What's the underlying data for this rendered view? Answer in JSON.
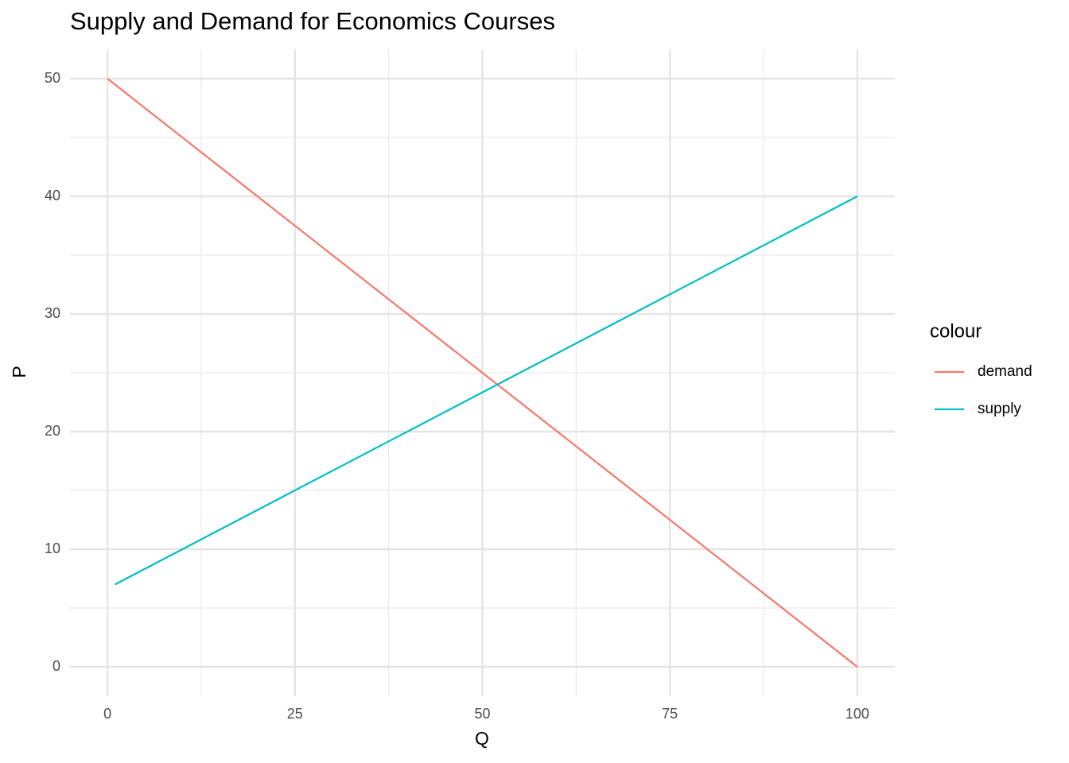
{
  "chart_data": {
    "type": "line",
    "title": "Supply and Demand for Economics Courses",
    "x_label": "Q",
    "y_label": "P",
    "series": [
      {
        "name": "demand",
        "color": "#f8766d",
        "x": [
          0,
          100
        ],
        "values": [
          50,
          0
        ]
      },
      {
        "name": "supply",
        "color": "#00bfc4",
        "x": [
          1,
          100
        ],
        "values": [
          7,
          40
        ]
      }
    ],
    "xlim": [
      -5,
      105
    ],
    "xticks": [
      0,
      25,
      50,
      75,
      100
    ],
    "ylim": [
      -2.5,
      52.5
    ],
    "yticks": [
      0,
      10,
      20,
      30,
      40,
      50
    ],
    "grid": true,
    "minor_grid": true,
    "legend_title": "colour",
    "legend_position": "right"
  }
}
